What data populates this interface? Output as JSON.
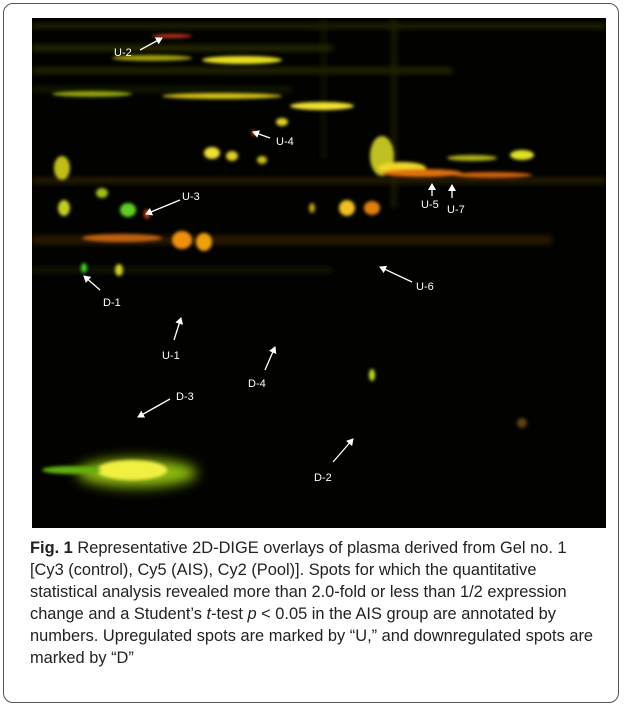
{
  "figure": {
    "annotations": [
      "U-2",
      "U-4",
      "U-3",
      "U-5",
      "U-7",
      "U-6",
      "D-1",
      "U-1",
      "D-4",
      "D-3",
      "D-2"
    ],
    "caption": {
      "label": "Fig. 1",
      "parts": [
        " Representative 2D-DIGE overlays of plasma derived from Gel no. 1 [Cy3 (control), Cy5 (AIS), Cy2 (Pool)]. Spots for which the quantitative statistical analysis revealed more than 2.0-fold or less than 1/2 expression change and a Student’s ",
        "t",
        "-test ",
        "p",
        " < 0.05 in the AIS group are annotated by numbers. Upregulated spots are marked by “U,” and downregulated spots are marked by “D”"
      ]
    }
  }
}
